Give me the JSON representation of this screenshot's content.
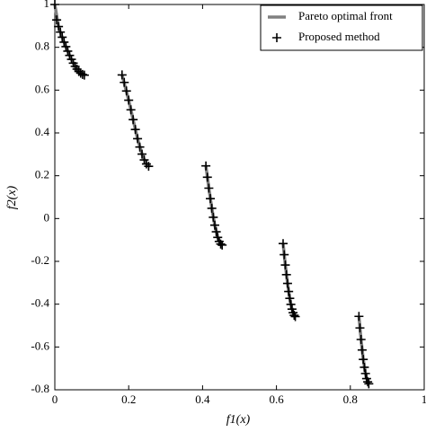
{
  "chart_data": {
    "type": "line",
    "x_label": "f1(x)",
    "y_label": "f2(x)",
    "xlim": [
      0,
      1
    ],
    "ylim": [
      -0.8,
      1
    ],
    "xticks": [
      0,
      0.2,
      0.4,
      0.6,
      0.8,
      1
    ],
    "yticks": [
      -0.8,
      -0.6,
      -0.4,
      -0.2,
      0,
      0.2,
      0.4,
      0.6,
      0.8,
      1
    ],
    "legend": "top-right",
    "series": [
      {
        "name": "Pareto optimal front",
        "color": "#808080",
        "style": "line",
        "x": [
          0,
          0.01,
          0.02,
          0.03,
          0.04,
          0.05,
          0.06,
          0.07,
          0.083,
          null,
          0.182,
          0.2,
          0.212,
          0.224,
          0.236,
          0.248,
          0.258,
          null,
          0.409,
          0.417,
          0.425,
          0.433,
          0.441,
          0.449,
          0.454,
          null,
          0.618,
          0.624,
          0.63,
          0.636,
          0.642,
          0.648,
          0.6525,
          null,
          0.8233,
          0.829,
          0.835,
          0.841,
          0.847,
          0.8518
        ],
        "values": [
          1,
          0.897,
          0.847,
          0.803,
          0.762,
          0.726,
          0.698,
          0.679,
          0.67,
          null,
          0.671,
          0.553,
          0.462,
          0.373,
          0.301,
          0.255,
          0.242,
          null,
          0.246,
          0.142,
          0.048,
          -0.031,
          -0.088,
          -0.119,
          -0.124,
          null,
          -0.117,
          -0.217,
          -0.303,
          -0.373,
          -0.423,
          -0.452,
          -0.458,
          null,
          -0.457,
          -0.565,
          -0.658,
          -0.724,
          -0.763,
          -0.773
        ]
      },
      {
        "name": "Proposed method",
        "color": "#000000",
        "style": "plus",
        "x": [
          0,
          0.005,
          0.01,
          0.015,
          0.02,
          0.025,
          0.03,
          0.035,
          0.04,
          0.045,
          0.05,
          0.055,
          0.06,
          0.065,
          0.07,
          0.075,
          0.08,
          0.182,
          0.188,
          0.194,
          0.2,
          0.206,
          0.212,
          0.218,
          0.224,
          0.23,
          0.236,
          0.242,
          0.248,
          0.254,
          0.409,
          0.413,
          0.417,
          0.421,
          0.425,
          0.429,
          0.433,
          0.437,
          0.441,
          0.445,
          0.449,
          0.453,
          0.618,
          0.621,
          0.624,
          0.627,
          0.63,
          0.633,
          0.636,
          0.639,
          0.642,
          0.645,
          0.648,
          0.651,
          0.8233,
          0.826,
          0.829,
          0.832,
          0.835,
          0.838,
          0.841,
          0.844,
          0.847,
          0.85
        ],
        "values": [
          1,
          0.928,
          0.897,
          0.871,
          0.847,
          0.824,
          0.803,
          0.782,
          0.762,
          0.744,
          0.726,
          0.711,
          0.698,
          0.687,
          0.679,
          0.673,
          0.67,
          0.671,
          0.636,
          0.596,
          0.553,
          0.508,
          0.462,
          0.416,
          0.373,
          0.334,
          0.301,
          0.274,
          0.255,
          0.244,
          0.246,
          0.193,
          0.142,
          0.093,
          0.048,
          0.006,
          -0.031,
          -0.062,
          -0.088,
          -0.107,
          -0.119,
          -0.124,
          -0.117,
          -0.169,
          -0.217,
          -0.262,
          -0.303,
          -0.341,
          -0.373,
          -0.401,
          -0.423,
          -0.44,
          -0.452,
          -0.458,
          -0.457,
          -0.511,
          -0.565,
          -0.614,
          -0.658,
          -0.695,
          -0.724,
          -0.748,
          -0.763,
          -0.772
        ]
      }
    ]
  }
}
